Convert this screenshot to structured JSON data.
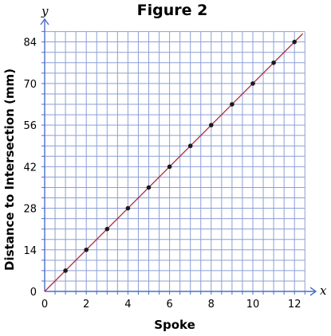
{
  "chart_data": {
    "type": "scatter",
    "title": "Figure 2",
    "xlabel": "Spoke",
    "ylabel": "Distance to Intersection (mm)",
    "x_axis_symbol": "x",
    "y_axis_symbol": "y",
    "xlim": [
      0,
      12.5
    ],
    "ylim": [
      0,
      87.5
    ],
    "x_ticks": [
      0,
      2,
      4,
      6,
      8,
      10,
      12
    ],
    "y_ticks": [
      0,
      14,
      28,
      42,
      56,
      70,
      84
    ],
    "grid": true,
    "points": {
      "x": [
        1,
        2,
        3,
        4,
        5,
        6,
        7,
        8,
        9,
        10,
        11,
        12
      ],
      "y": [
        7,
        14,
        21,
        28,
        35,
        42,
        49,
        56,
        63,
        70,
        77,
        84
      ]
    },
    "trend_line": {
      "slope": 7,
      "intercept": 0
    },
    "colors": {
      "grid": "#8c9fd6",
      "axis": "#4a6fc7",
      "line": "#b32b3a",
      "point": "#1a1a1a"
    }
  }
}
